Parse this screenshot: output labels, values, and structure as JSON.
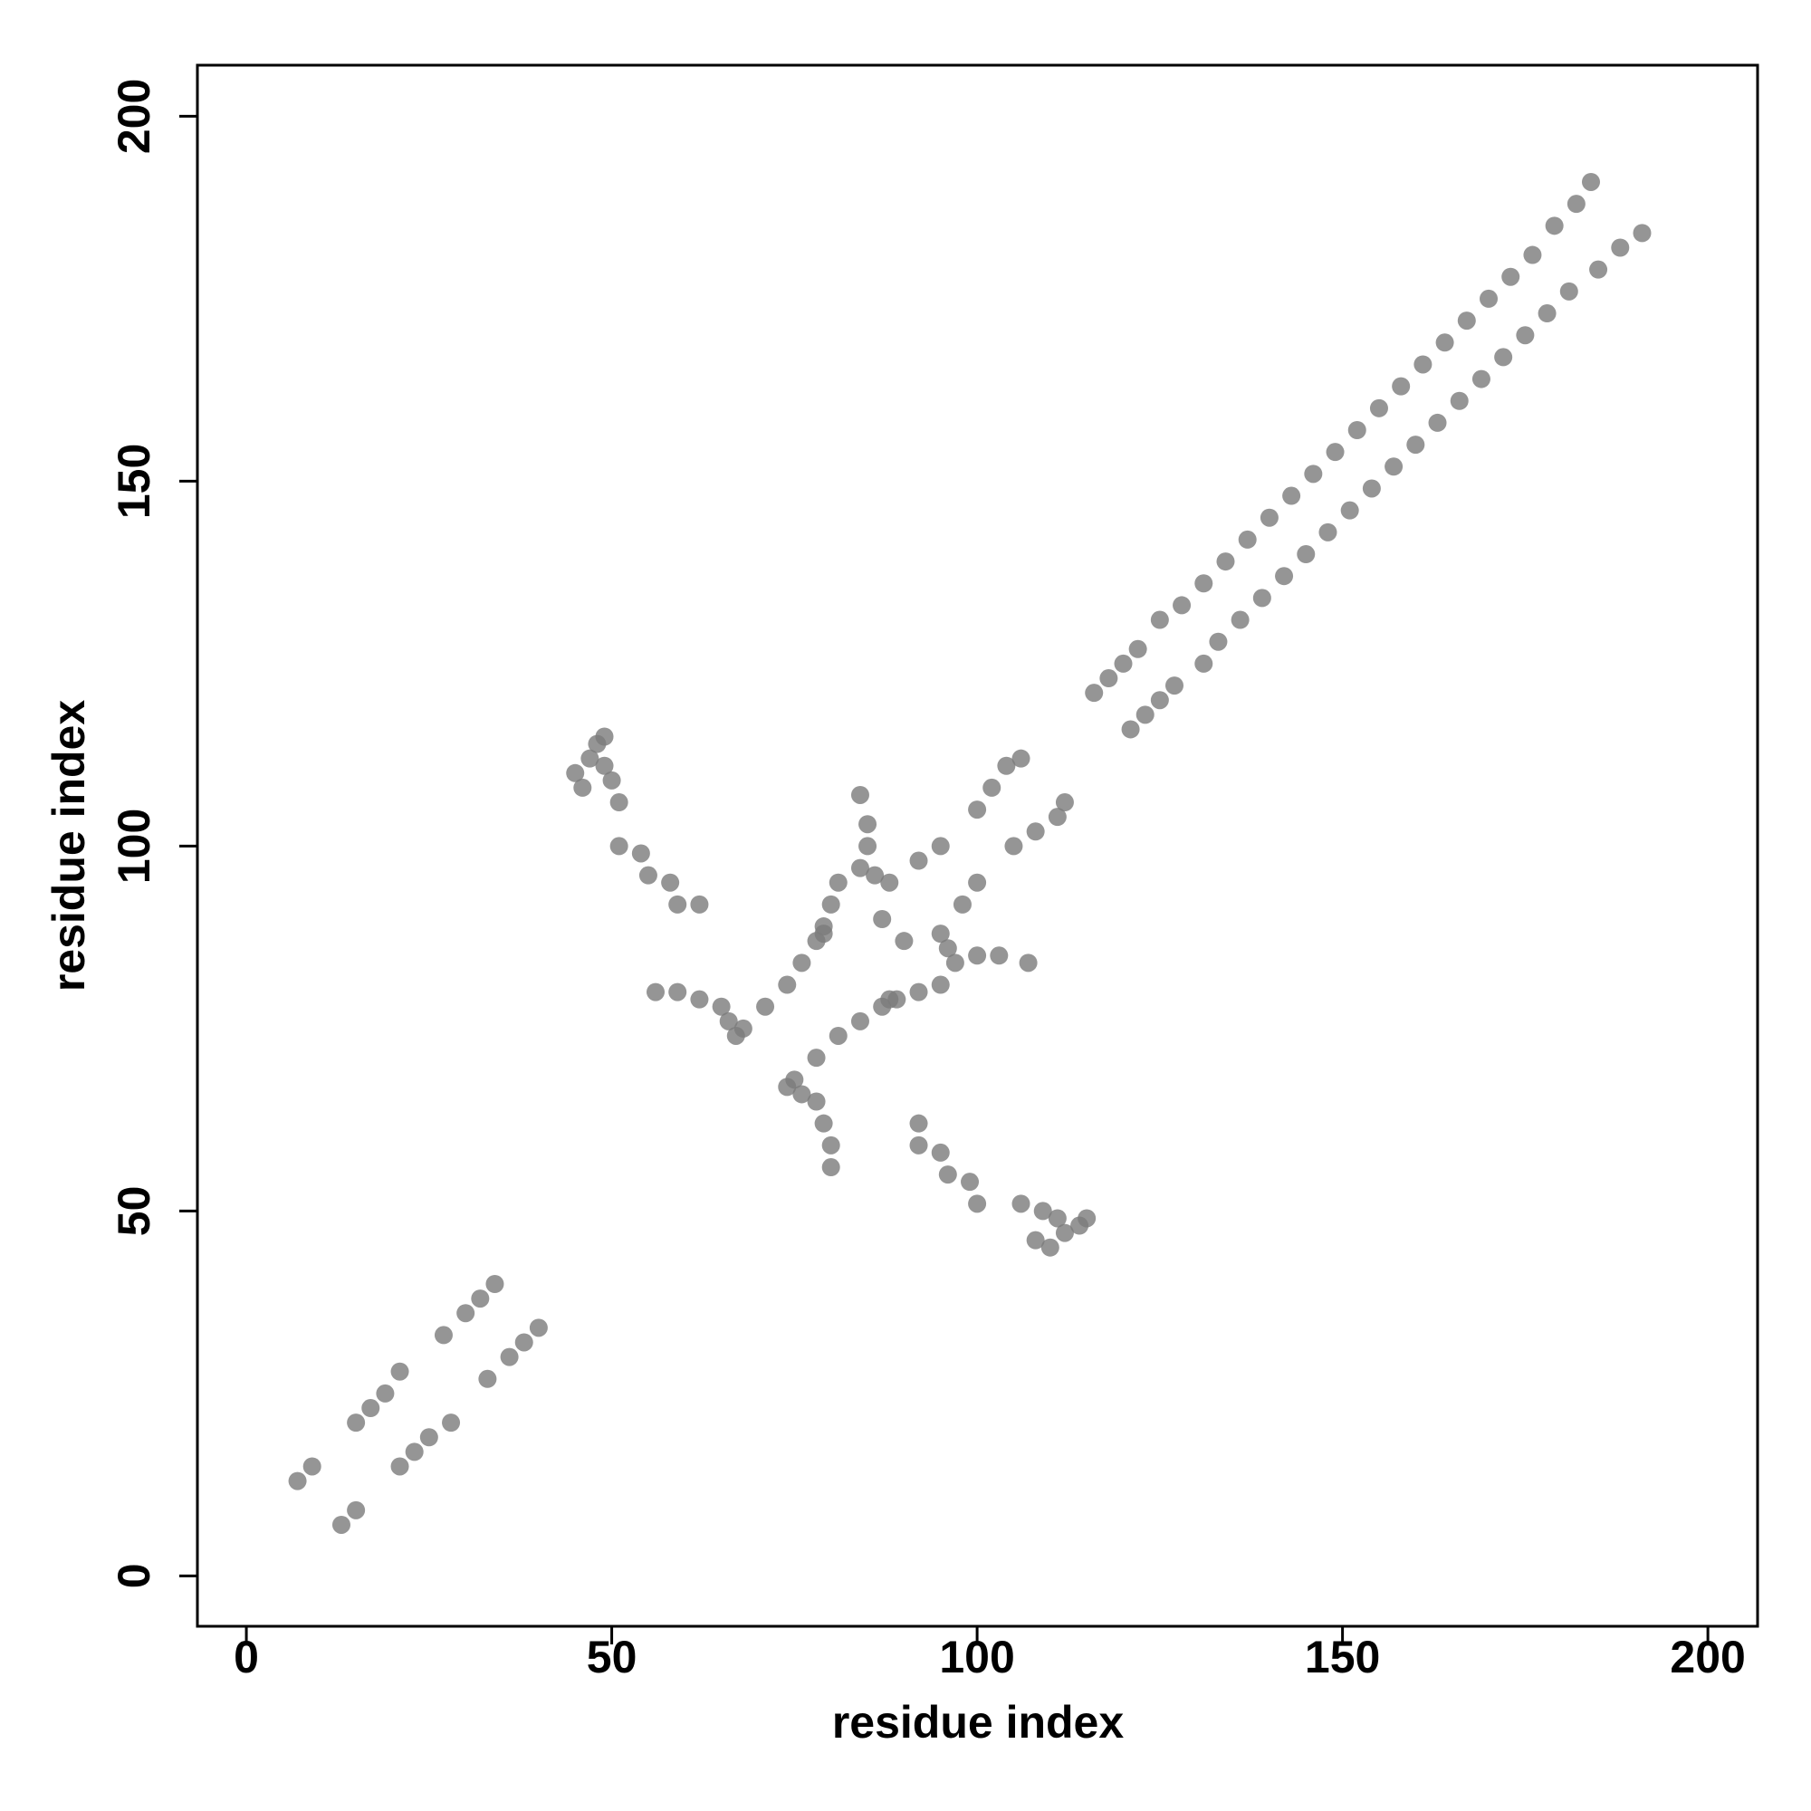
{
  "chart_data": {
    "type": "scatter",
    "xlabel": "residue index",
    "ylabel": "residue index",
    "xlim": [
      -6.7,
      206.8
    ],
    "ylim": [
      -6.9,
      207
    ],
    "xticks": [
      0,
      50,
      100,
      150,
      200
    ],
    "yticks": [
      0,
      50,
      100,
      150,
      200
    ],
    "color": "#7a7a7a",
    "alpha": 0.8,
    "x": [
      7,
      9,
      15,
      17,
      19,
      21,
      27,
      30,
      32,
      34,
      68,
      71,
      74,
      76,
      78,
      79,
      80,
      81,
      84,
      85,
      85,
      84,
      88,
      92,
      95,
      100,
      102,
      104,
      106,
      79,
      45,
      47,
      48,
      49,
      50,
      46,
      51,
      49,
      51,
      54,
      55,
      58,
      59,
      62,
      56,
      59,
      62,
      65,
      66,
      67,
      86,
      87,
      116,
      118,
      120,
      122,
      125,
      128,
      131,
      134,
      137,
      140,
      143,
      146,
      149,
      152,
      155,
      158,
      161,
      164,
      167,
      170,
      173,
      176,
      179,
      182,
      184,
      13,
      15,
      21,
      23,
      25,
      28,
      33,
      36,
      38,
      40,
      75,
      78,
      81,
      84,
      87,
      89,
      92,
      95,
      97,
      100,
      103,
      107,
      95,
      98,
      100,
      105,
      108,
      111,
      112,
      88,
      110,
      112,
      114,
      111,
      109,
      108,
      106,
      115,
      100,
      99,
      96,
      95,
      92,
      92,
      80,
      80,
      79,
      78,
      76,
      74,
      96,
      90,
      121,
      123,
      125,
      127,
      131,
      133,
      136,
      139,
      142,
      145,
      148,
      151,
      154,
      157,
      160,
      163,
      166,
      169,
      172,
      175,
      178,
      181,
      185,
      188,
      191
    ],
    "y": [
      13,
      15,
      21,
      23,
      25,
      28,
      33,
      36,
      38,
      40,
      75,
      78,
      81,
      84,
      87,
      89,
      92,
      95,
      97,
      100,
      103,
      107,
      95,
      98,
      100,
      105,
      108,
      111,
      112,
      88,
      110,
      112,
      114,
      111,
      109,
      108,
      106,
      115,
      100,
      99,
      96,
      95,
      92,
      92,
      80,
      80,
      79,
      78,
      76,
      74,
      96,
      90,
      121,
      123,
      125,
      127,
      131,
      133,
      136,
      139,
      142,
      145,
      148,
      151,
      154,
      157,
      160,
      163,
      166,
      169,
      172,
      175,
      178,
      181,
      185,
      188,
      191,
      7,
      9,
      15,
      17,
      19,
      21,
      27,
      30,
      32,
      34,
      68,
      71,
      74,
      76,
      78,
      79,
      80,
      81,
      84,
      85,
      85,
      84,
      88,
      92,
      95,
      100,
      102,
      104,
      106,
      79,
      45,
      47,
      48,
      49,
      50,
      46,
      51,
      49,
      51,
      54,
      55,
      58,
      59,
      62,
      56,
      59,
      62,
      65,
      66,
      67,
      86,
      87,
      116,
      118,
      120,
      122,
      125,
      128,
      131,
      134,
      137,
      140,
      143,
      146,
      149,
      152,
      155,
      158,
      161,
      164,
      167,
      170,
      173,
      176,
      179,
      182,
      184
    ]
  }
}
